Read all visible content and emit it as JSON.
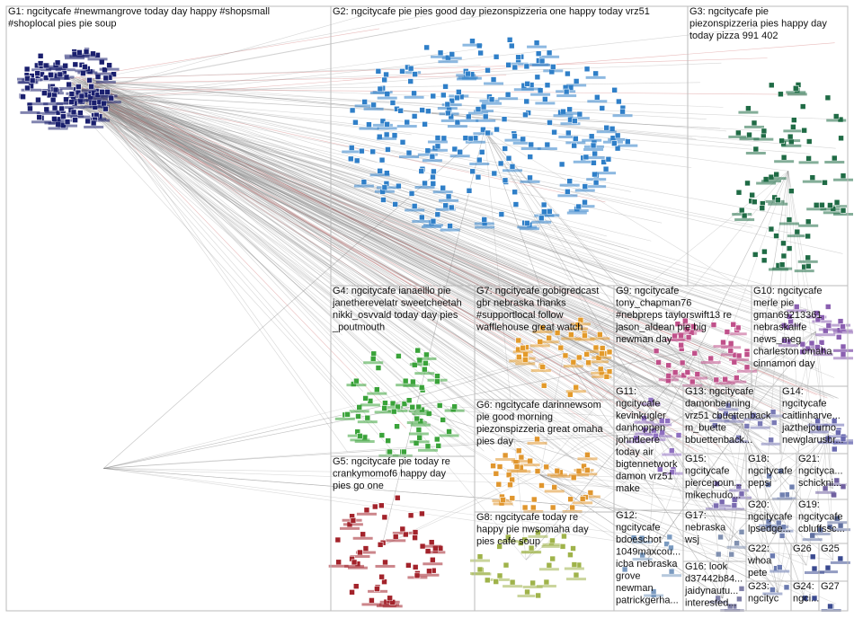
{
  "groups": [
    {
      "lines": [
        "G1: ngcitycafe #newmangrove today day happy #shopsmall",
        "#shoplocal pies pie soup"
      ]
    },
    {
      "lines": [
        "G2: ngcitycafe pie pies good day piezonspizzeria one happy today vrz51"
      ]
    },
    {
      "lines": [
        "G3: ngcitycafe pie",
        "piezonspizzeria pies happy day",
        "today pizza 991 402"
      ]
    },
    {
      "lines": [
        "G4: ngcitycafe ianaeillo pie",
        "janetherevelatr sweetcheetah",
        "nikki_osvvald today day pies",
        "_poutmouth"
      ]
    },
    {
      "lines": [
        "G7: ngcitycafe gobigredcast",
        "gbr nebraska thanks",
        "#supportlocal follow",
        "wafflehouse great watch"
      ]
    },
    {
      "lines": [
        "G9: ngcitycafe",
        "tony_chapman76",
        "#nebpreps taylorswift13 re",
        "jason_aldean pie big",
        "newman day"
      ]
    },
    {
      "lines": [
        "G10: ngcitycafe",
        "merle pie",
        "gman69213361",
        "nebraskalife",
        "news_meg",
        "charleston omaha",
        "cinnamon day"
      ]
    },
    {
      "lines": [
        "G6: ngcitycafe darinnewsom",
        "pie good morning",
        "piezonspizzeria great omaha",
        "pies day"
      ]
    },
    {
      "lines": [
        "G11:",
        "ngcitycafe",
        "kevinkugler",
        "danhoppen",
        "johndeere",
        "today air",
        "bigtennetwork",
        "damon vrz51",
        "make"
      ]
    },
    {
      "lines": [
        "G13: ngcitycafe",
        "damonbenning",
        "vrz51 cbuettenback",
        "m_buette",
        "bbuettenback..."
      ]
    },
    {
      "lines": [
        "G14:",
        "ngcitycafe",
        "caitlinharve...",
        "jazthejourno",
        "newglarusbr..."
      ]
    },
    {
      "lines": [
        "G5: ngcitycafe pie today re",
        "crankymomof6 happy day",
        "pies go one"
      ]
    },
    {
      "lines": [
        "G15:",
        "ngcitycafe",
        "piercepoun...",
        "mikechudo..."
      ]
    },
    {
      "lines": [
        "G18:",
        "ngcitycafe",
        "pepsi"
      ]
    },
    {
      "lines": [
        "G21:",
        "ngcityca...",
        "schickni..."
      ]
    },
    {
      "lines": [
        "G19:",
        "ngcitycafe",
        "cbluffssc..."
      ]
    },
    {
      "lines": [
        "G20:",
        "ngcitycafe",
        "lpsedge..."
      ]
    },
    {
      "lines": [
        "G8: ngcitycafe today re",
        "happy pie nwsomaha day",
        "pies café soup"
      ]
    },
    {
      "lines": [
        "G12:",
        "ngcitycafe",
        "bdoeschot",
        "1049maxcou...",
        "icba nebraska",
        "grove",
        "newman",
        "patrickgerha..."
      ]
    },
    {
      "lines": [
        "G17:",
        "nebraska",
        "wsj"
      ]
    },
    {
      "lines": [
        "G16: look",
        "d37442b84...",
        "jaidynautu...",
        "interested..."
      ]
    },
    {
      "lines": [
        "G22:",
        "whoa",
        "pete"
      ]
    },
    {
      "lines": [
        "G26"
      ]
    },
    {
      "lines": [
        "G25"
      ]
    },
    {
      "lines": [
        "G23:",
        "ngcityc"
      ]
    },
    {
      "lines": [
        "G24:",
        "ngci..."
      ]
    },
    {
      "lines": [
        "G27"
      ]
    }
  ]
}
